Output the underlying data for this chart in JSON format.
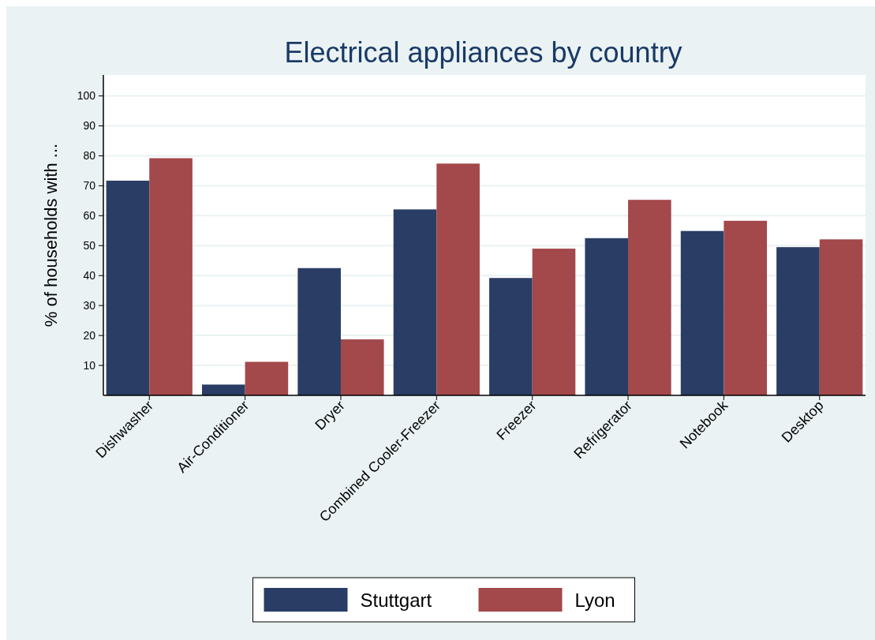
{
  "chart_data": {
    "type": "bar",
    "title": "Electrical appliances by country",
    "ylabel": "% of households with ...",
    "categories": [
      "Dishwasher",
      "Air-Conditioner",
      "Dryer",
      "Combined Cooler-Freezer",
      "Freezer",
      "Refrigerator",
      "Notebook",
      "Desktop"
    ],
    "series": [
      {
        "name": "Stuttgart",
        "color": "#2a3d65",
        "values": [
          71.7,
          3.6,
          42.5,
          62.1,
          39.2,
          52.5,
          54.9,
          49.5
        ]
      },
      {
        "name": "Lyon",
        "color": "#a3484b",
        "values": [
          79.2,
          11.2,
          18.7,
          77.4,
          49.0,
          65.3,
          58.3,
          52.1
        ]
      }
    ],
    "ylim": [
      0,
      107
    ],
    "yticks": [
      10,
      20,
      30,
      40,
      50,
      60,
      70,
      80,
      90,
      100
    ],
    "grid": "y",
    "legend": "bottom"
  }
}
